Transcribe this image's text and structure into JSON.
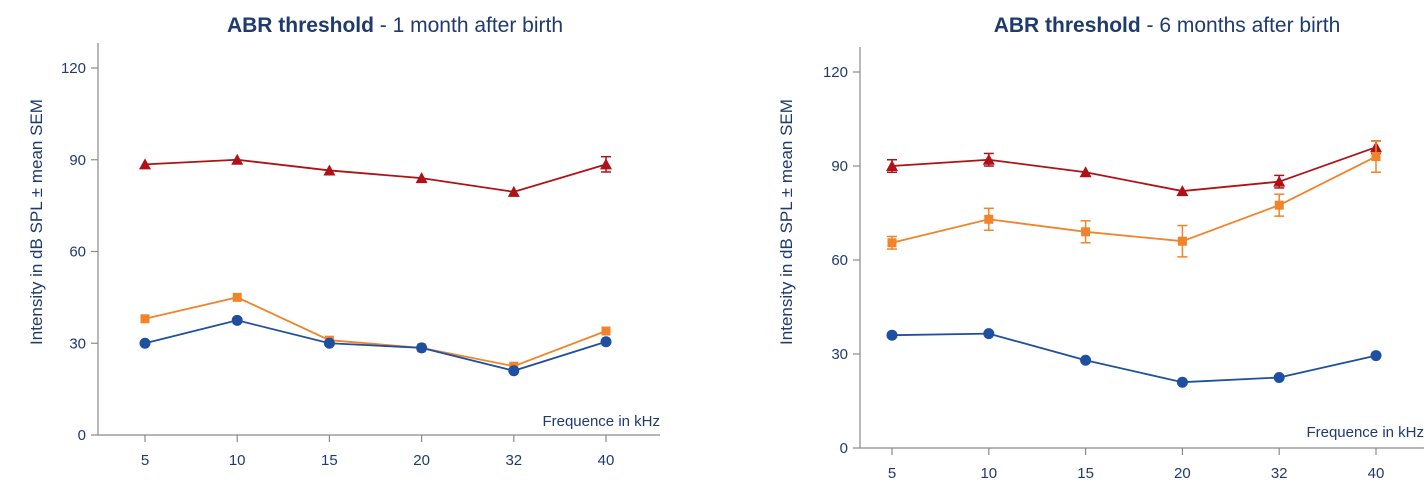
{
  "chart_data": [
    {
      "type": "line",
      "title": "ABR threshold",
      "subtitle": " - 1 month after birth",
      "xlabel": "Frequence in kHz",
      "ylabel": "Intensity in dB SPL ± mean SEM",
      "categories": [
        "5",
        "10",
        "15",
        "20",
        "32",
        "40"
      ],
      "yticks": [
        0,
        30,
        60,
        90,
        120
      ],
      "ylim": [
        0,
        120
      ],
      "grid": false,
      "series": [
        {
          "marker": "triangle",
          "color": "#b01116",
          "values": [
            88.5,
            90,
            86.5,
            84,
            79.5,
            88.5
          ],
          "errors": [
            0,
            0,
            0,
            0,
            0,
            2.5
          ]
        },
        {
          "marker": "square",
          "color": "#f0842b",
          "values": [
            38,
            45,
            31,
            28.5,
            22.5,
            34
          ],
          "errors": [
            0,
            0,
            0,
            0,
            0,
            0
          ]
        },
        {
          "marker": "circle",
          "color": "#1f4fa0",
          "values": [
            30,
            37.5,
            30,
            28.5,
            21,
            30.5
          ],
          "errors": [
            0,
            0,
            0,
            0,
            0,
            0
          ]
        }
      ]
    },
    {
      "type": "line",
      "title": "ABR threshold",
      "subtitle": " - 6 months after birth",
      "xlabel": "Frequence in kHz",
      "ylabel": "Intensity in dB SPL ± mean SEM",
      "categories": [
        "5",
        "10",
        "15",
        "20",
        "32",
        "40"
      ],
      "yticks": [
        0,
        30,
        60,
        90,
        120
      ],
      "ylim": [
        0,
        120
      ],
      "grid": false,
      "series": [
        {
          "marker": "triangle",
          "color": "#b01116",
          "values": [
            90,
            92,
            88,
            82,
            85,
            96
          ],
          "errors": [
            2,
            2,
            0,
            0,
            2,
            2
          ]
        },
        {
          "marker": "square",
          "color": "#f0842b",
          "values": [
            65.5,
            73,
            69,
            66,
            77.5,
            93
          ],
          "errors": [
            2,
            3.5,
            3.5,
            5,
            3.5,
            5
          ]
        },
        {
          "marker": "circle",
          "color": "#1f4fa0",
          "values": [
            36,
            36.5,
            28,
            21,
            22.5,
            29.5
          ],
          "errors": [
            0,
            0,
            0,
            0,
            0,
            0
          ]
        }
      ]
    }
  ]
}
